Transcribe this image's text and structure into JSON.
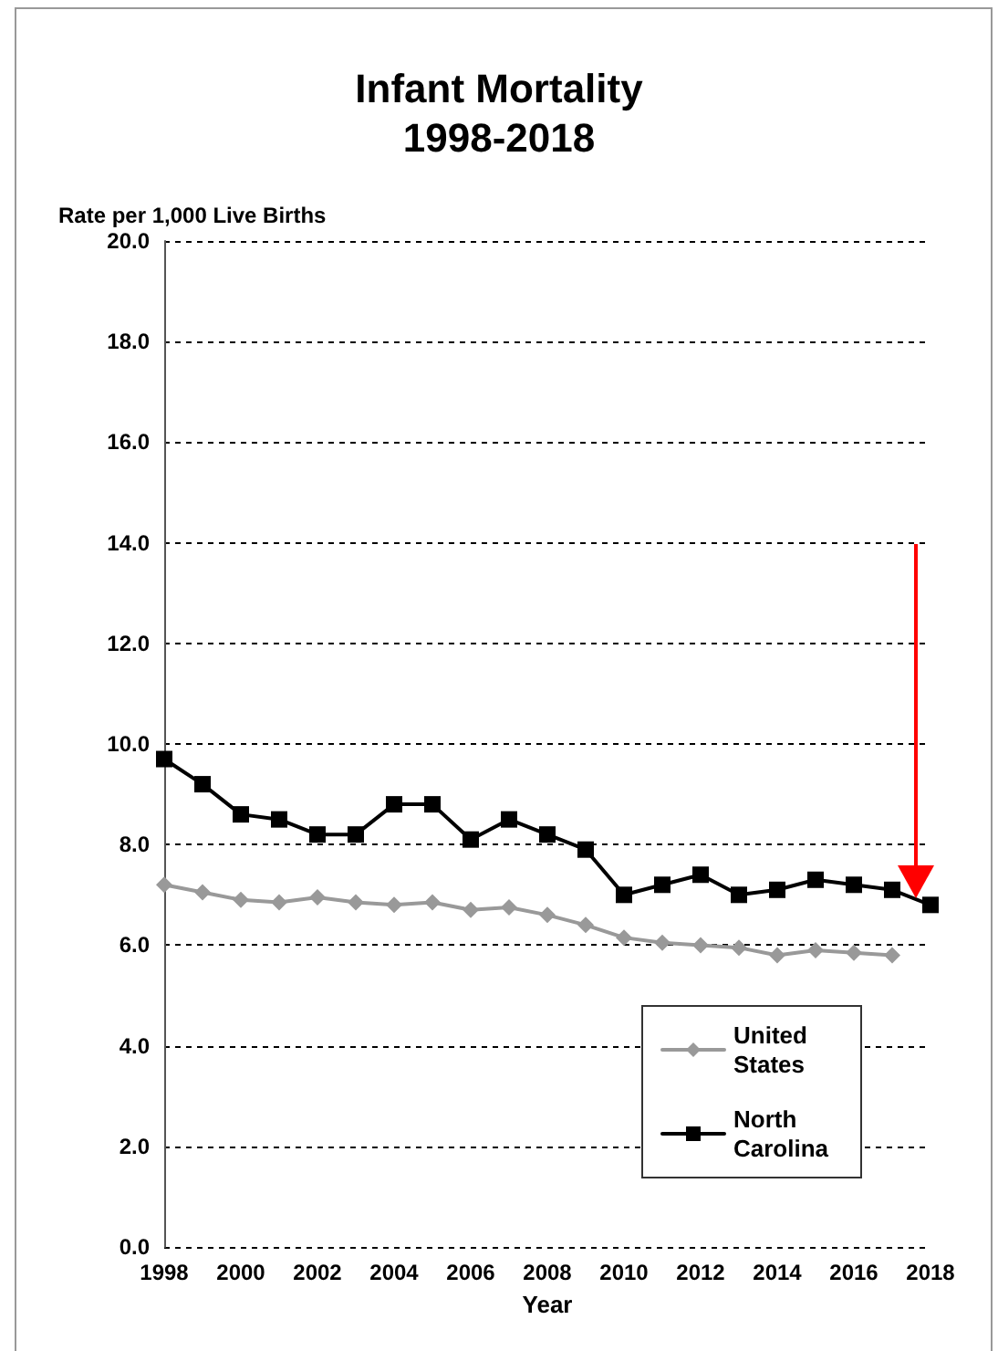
{
  "chart_data": {
    "type": "line",
    "title": "Infant Mortality\n1998-2018",
    "ylabel": "Rate per 1,000 Live Births",
    "xlabel": "Year",
    "x": [
      1998,
      1999,
      2000,
      2001,
      2002,
      2003,
      2004,
      2005,
      2006,
      2007,
      2008,
      2009,
      2010,
      2011,
      2012,
      2013,
      2014,
      2015,
      2016,
      2017,
      2018
    ],
    "series": [
      {
        "name": "United States",
        "color": "#999999",
        "marker": "diamond",
        "values": [
          7.2,
          7.05,
          6.9,
          6.85,
          6.95,
          6.85,
          6.8,
          6.85,
          6.7,
          6.75,
          6.6,
          6.4,
          6.15,
          6.05,
          6.0,
          5.95,
          5.8,
          5.9,
          5.85,
          5.8,
          null
        ]
      },
      {
        "name": "North Carolina",
        "color": "#000000",
        "marker": "square",
        "values": [
          9.7,
          9.2,
          8.6,
          8.5,
          8.2,
          8.2,
          8.8,
          8.8,
          8.1,
          8.5,
          8.2,
          7.9,
          7.0,
          7.2,
          7.4,
          7.0,
          7.1,
          7.3,
          7.2,
          7.1,
          6.8
        ]
      }
    ],
    "xlim": [
      1998,
      2018
    ],
    "xticks": [
      1998,
      2000,
      2002,
      2004,
      2006,
      2008,
      2010,
      2012,
      2014,
      2016,
      2018
    ],
    "ylim": [
      0,
      20
    ],
    "yticks": [
      {
        "value": 0,
        "label": "0.0"
      },
      {
        "value": 2,
        "label": "2.0"
      },
      {
        "value": 4,
        "label": "4.0"
      },
      {
        "value": 6,
        "label": "6.0"
      },
      {
        "value": 8,
        "label": "8.0"
      },
      {
        "value": 10,
        "label": "10.0"
      },
      {
        "value": 12,
        "label": "12.0"
      },
      {
        "value": 14,
        "label": "14.0"
      },
      {
        "value": 16,
        "label": "16.0"
      },
      {
        "value": 18,
        "label": "18.0"
      },
      {
        "value": 20,
        "label": "20.0"
      }
    ],
    "grid": "y",
    "legend": "bottom right",
    "line_style": "solid"
  }
}
